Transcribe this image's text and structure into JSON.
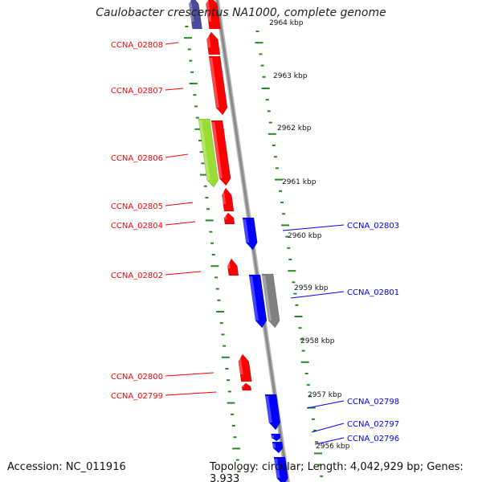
{
  "title": "Caulobacter crescentus NA1000, complete genome",
  "accession": "Accession: NC_011916",
  "topology": "Topology: circular; Length: 4,042,929 bp; Genes: 3,933",
  "colors": {
    "forward_gene": "#ff0000",
    "reverse_gene": "#0000ff",
    "pseudo_gene": "#808080",
    "highlight_gene": "#99dd33",
    "tick": "#228b22",
    "backbone": "#8a8a8a"
  },
  "kbp_ticks": [
    {
      "label": "2964 kbp",
      "faded": true
    },
    {
      "label": "2963 kbp"
    },
    {
      "label": "2962 kbp"
    },
    {
      "label": "2961 kbp"
    },
    {
      "label": "2960 kbp"
    },
    {
      "label": "2959 kbp"
    },
    {
      "label": "2958 kbp"
    },
    {
      "label": "2957 kbp"
    },
    {
      "label": "2956 kbp"
    }
  ],
  "genes_left": [
    {
      "name": "CCNA_02808"
    },
    {
      "name": "CCNA_02807"
    },
    {
      "name": "CCNA_02806"
    },
    {
      "name": "CCNA_02805"
    },
    {
      "name": "CCNA_02804"
    },
    {
      "name": "CCNA_02802"
    },
    {
      "name": "CCNA_02800"
    },
    {
      "name": "CCNA_02799"
    }
  ],
  "genes_right": [
    {
      "name": "CCNA_02803"
    },
    {
      "name": "CCNA_02801"
    },
    {
      "name": "CCNA_02798"
    },
    {
      "name": "CCNA_02797"
    },
    {
      "name": "CCNA_02796"
    }
  ]
}
